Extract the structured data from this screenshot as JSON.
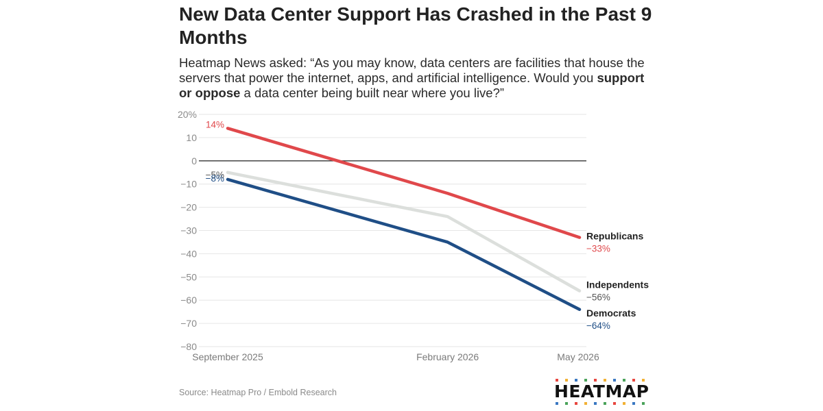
{
  "title": "New Data Center Support Has Crashed in the Past 9 Months",
  "subtitle": {
    "part1": "Heatmap News asked: “As you may know, data centers are facilities that house the servers that power the internet, apps, and artificial intelligence. Would you ",
    "emphasis": "support or oppose",
    "part2": " a data center being built near where you live?”"
  },
  "source": "Source: Heatmap Pro / Embold Research",
  "logo": {
    "text": "HEATMAP",
    "dot_colors": [
      "#e8463f",
      "#f2b134",
      "#3a78c2",
      "#4aa35a"
    ]
  },
  "chart_data": {
    "type": "line",
    "x": [
      "September 2025",
      "February 2026",
      "May 2026"
    ],
    "x_positions_months": [
      0,
      5,
      8
    ],
    "ylim": [
      -80,
      20
    ],
    "yticks": [
      20,
      10,
      0,
      -10,
      -20,
      -30,
      -40,
      -50,
      -60,
      -70,
      -80
    ],
    "ytick_labels": [
      "20%",
      "10",
      "0",
      "−10",
      "−20",
      "−30",
      "−40",
      "−50",
      "−60",
      "−70",
      "−80"
    ],
    "grid": true,
    "series": [
      {
        "name": "Independents",
        "color": "#dcdfdc",
        "values": [
          -5,
          -24,
          -56
        ],
        "start_label": "−5%",
        "end_label": "−56%"
      },
      {
        "name": "Democrats",
        "color": "#1f4e86",
        "values": [
          -8,
          -35,
          -64
        ],
        "start_label": "−8%",
        "end_label": "−64%"
      },
      {
        "name": "Republicans",
        "color": "#e0484b",
        "values": [
          14,
          -14,
          -33
        ],
        "start_label": "14%",
        "end_label": "−33%"
      }
    ]
  }
}
